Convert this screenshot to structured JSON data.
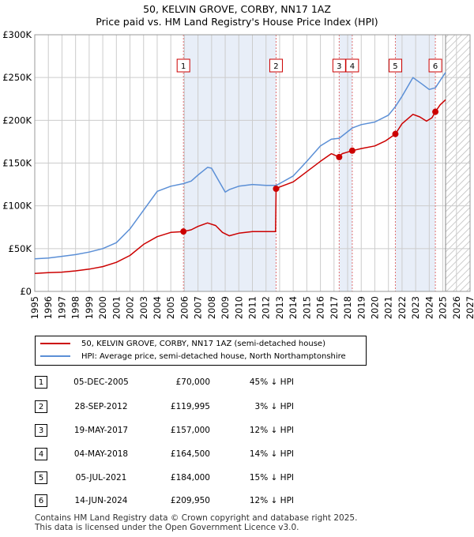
{
  "title": "50, KELVIN GROVE, CORBY, NN17 1AZ",
  "subtitle": "Price paid vs. HM Land Registry's House Price Index (HPI)",
  "colors": {
    "price_line": "#cc0000",
    "hpi_line": "#5b8fd6",
    "shade": "#e8eef8",
    "grid": "#cccccc",
    "marker_line": "#e07070"
  },
  "legend": {
    "price_label": "50, KELVIN GROVE, CORBY, NN17 1AZ (semi-detached house)",
    "hpi_label": "HPI: Average price, semi-detached house, North Northamptonshire"
  },
  "transactions": [
    {
      "num": "1",
      "date": "05-DEC-2005",
      "price": "£70,000",
      "pct": "45% ↓ HPI"
    },
    {
      "num": "2",
      "date": "28-SEP-2012",
      "price": "£119,995",
      "pct": "3% ↓ HPI"
    },
    {
      "num": "3",
      "date": "19-MAY-2017",
      "price": "£157,000",
      "pct": "12% ↓ HPI"
    },
    {
      "num": "4",
      "date": "04-MAY-2018",
      "price": "£164,500",
      "pct": "14% ↓ HPI"
    },
    {
      "num": "5",
      "date": "05-JUL-2021",
      "price": "£184,000",
      "pct": "15% ↓ HPI"
    },
    {
      "num": "6",
      "date": "14-JUN-2024",
      "price": "£209,950",
      "pct": "12% ↓ HPI"
    }
  ],
  "footer": {
    "line1": "Contains HM Land Registry data © Crown copyright and database right 2025.",
    "line2": "This data is licensed under the Open Government Licence v3.0."
  },
  "chart_data": {
    "type": "line",
    "title": "50, KELVIN GROVE, CORBY, NN17 1AZ",
    "subtitle": "Price paid vs. HM Land Registry's House Price Index (HPI)",
    "xlim": [
      1995,
      2027
    ],
    "ylim": [
      0,
      300000
    ],
    "y_ticks": [
      {
        "value": 0,
        "label": "£0"
      },
      {
        "value": 50000,
        "label": "£50K"
      },
      {
        "value": 100000,
        "label": "£100K"
      },
      {
        "value": 150000,
        "label": "£150K"
      },
      {
        "value": 200000,
        "label": "£200K"
      },
      {
        "value": 250000,
        "label": "£250K"
      },
      {
        "value": 300000,
        "label": "£300K"
      }
    ],
    "x_ticks": [
      "1995",
      "1996",
      "1997",
      "1998",
      "1999",
      "2000",
      "2001",
      "2002",
      "2003",
      "2004",
      "2005",
      "2006",
      "2007",
      "2008",
      "2009",
      "2010",
      "2011",
      "2012",
      "2013",
      "2014",
      "2015",
      "2016",
      "2017",
      "2018",
      "2019",
      "2020",
      "2021",
      "2022",
      "2023",
      "2024",
      "2025",
      "2026",
      "2027"
    ],
    "forecast_start": 2025.2,
    "shaded_periods": [
      [
        2005.93,
        2012.74
      ],
      [
        2017.38,
        2018.34
      ],
      [
        2021.51,
        2024.45
      ]
    ],
    "sales": [
      {
        "num": "1",
        "x": 2005.93,
        "y": 70000
      },
      {
        "num": "2",
        "x": 2012.74,
        "y": 119995
      },
      {
        "num": "3",
        "x": 2017.38,
        "y": 157000
      },
      {
        "num": "4",
        "x": 2018.34,
        "y": 164500
      },
      {
        "num": "5",
        "x": 2021.51,
        "y": 184000
      },
      {
        "num": "6",
        "x": 2024.45,
        "y": 209950
      }
    ],
    "series": [
      {
        "name": "50, KELVIN GROVE, CORBY, NN17 1AZ (semi-detached house)",
        "x": [
          1995.0,
          1996.0,
          1997.0,
          1998.0,
          1999.0,
          2000.0,
          2001.0,
          2002.0,
          2003.0,
          2004.0,
          2005.0,
          2005.93,
          2006.5,
          2007.0,
          2007.7,
          2008.3,
          2008.8,
          2009.3,
          2010.0,
          2011.0,
          2012.0,
          2012.7,
          2012.74,
          2013.0,
          2014.0,
          2015.0,
          2016.0,
          2016.8,
          2017.38,
          2017.6,
          2018.34,
          2019.0,
          2020.0,
          2020.8,
          2021.51,
          2022.0,
          2022.8,
          2023.3,
          2023.8,
          2024.2,
          2024.45,
          2024.8,
          2025.2
        ],
        "values": [
          21000,
          22000,
          22500,
          24000,
          26000,
          29000,
          34000,
          42000,
          55000,
          64000,
          69000,
          70000,
          72000,
          76000,
          80000,
          77000,
          69000,
          65000,
          68000,
          70000,
          70000,
          70000,
          119995,
          122000,
          128000,
          140000,
          152000,
          161000,
          157000,
          161000,
          164500,
          167000,
          170000,
          176000,
          184000,
          196000,
          207000,
          204000,
          199000,
          203000,
          209950,
          218000,
          224000
        ]
      },
      {
        "name": "HPI: Average price, semi-detached house, North Northamptonshire",
        "x": [
          1995.0,
          1996.0,
          1997.0,
          1998.0,
          1999.0,
          2000.0,
          2001.0,
          2002.0,
          2003.0,
          2004.0,
          2005.0,
          2005.93,
          2006.5,
          2007.0,
          2007.7,
          2008.0,
          2008.5,
          2009.0,
          2009.3,
          2010.0,
          2011.0,
          2012.0,
          2012.74,
          2013.0,
          2014.0,
          2015.0,
          2016.0,
          2016.8,
          2017.38,
          2018.34,
          2019.0,
          2020.0,
          2021.0,
          2021.51,
          2022.0,
          2022.8,
          2023.5,
          2024.0,
          2024.45,
          2025.2
        ],
        "values": [
          38000,
          39000,
          41000,
          43000,
          46000,
          50000,
          57000,
          73000,
          95000,
          117000,
          123000,
          126000,
          129000,
          136000,
          145000,
          144000,
          130000,
          116000,
          119000,
          123000,
          125000,
          124000,
          124000,
          126000,
          135000,
          152000,
          170000,
          178000,
          179000,
          191000,
          195000,
          198000,
          206000,
          216000,
          228000,
          250000,
          242000,
          236000,
          238000,
          256000
        ]
      }
    ]
  }
}
